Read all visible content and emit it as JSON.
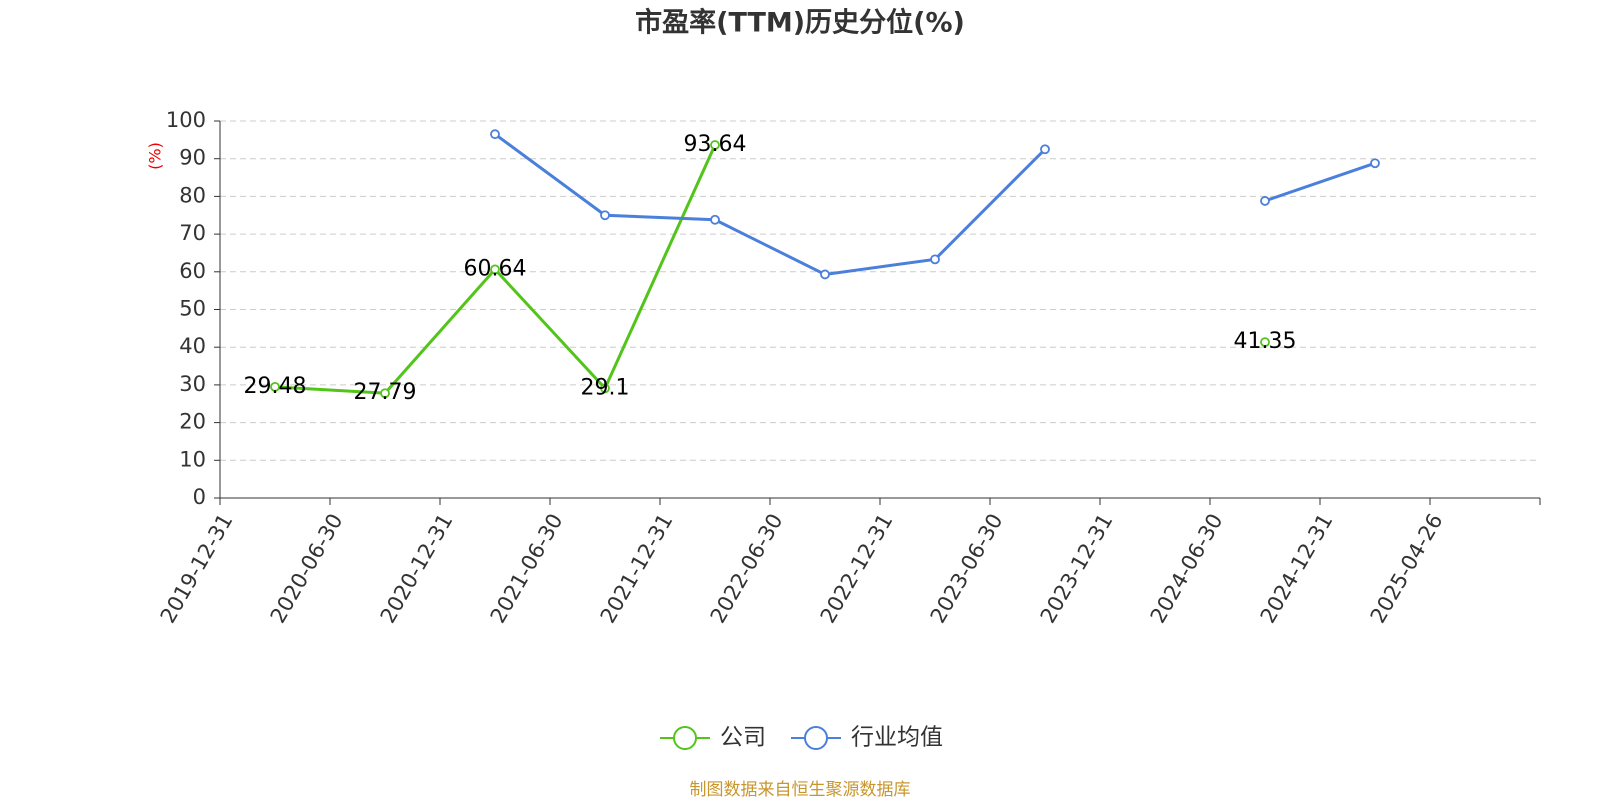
{
  "chart_data": {
    "type": "line",
    "title": "市盈率(TTM)历史分位(%)",
    "y_label": "(%)",
    "categories": [
      "2019-12-31",
      "2020-06-30",
      "2020-12-31",
      "2021-06-30",
      "2021-12-31",
      "2022-06-30",
      "2022-12-31",
      "2023-06-30",
      "2023-12-31",
      "2024-06-30",
      "2024-12-31",
      "2025-04-26"
    ],
    "series": [
      {
        "name": "公司",
        "color": "#52c41a",
        "values": [
          29.48,
          27.79,
          60.64,
          29.1,
          93.64,
          null,
          null,
          null,
          null,
          41.35,
          null,
          null
        ]
      },
      {
        "name": "行业均值",
        "color": "#4a7fdb",
        "values": [
          null,
          null,
          96.5,
          75,
          73.8,
          59.3,
          63.3,
          92.5,
          null,
          78.8,
          88.8,
          null
        ]
      }
    ],
    "ylim": [
      0,
      100
    ],
    "yticks": [
      0,
      10,
      20,
      30,
      40,
      50,
      60,
      70,
      80,
      90,
      100
    ],
    "grid": true,
    "source": "制图数据来自恒生聚源数据库"
  }
}
